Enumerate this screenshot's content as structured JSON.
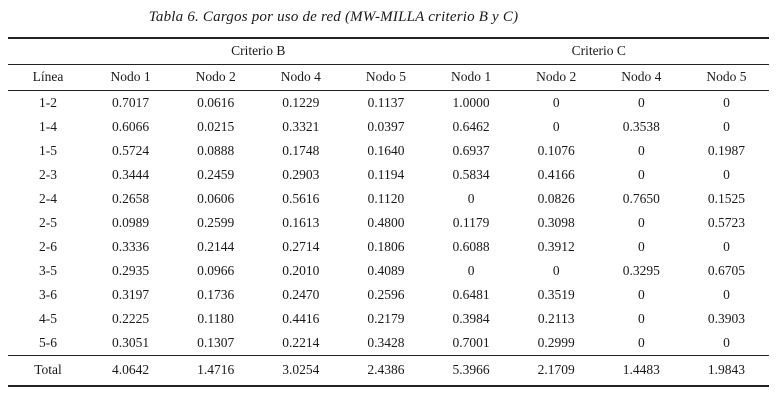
{
  "title": "Tabla 6. Cargos por uso de red (MW-MILLA criterio B y C)",
  "colors": {
    "background": "#ffffff",
    "text": "#1a1a1a",
    "rule": "#222222"
  },
  "table": {
    "group_headers": [
      {
        "label": "Criterio B",
        "span": 4
      },
      {
        "label": "Criterio C",
        "span": 4
      }
    ],
    "col_headers": [
      "Línea",
      "Nodo 1",
      "Nodo 2",
      "Nodo 4",
      "Nodo 5",
      "Nodo 1",
      "Nodo 2",
      "Nodo 4",
      "Nodo 5"
    ],
    "rows": [
      [
        "1-2",
        "0.7017",
        "0.0616",
        "0.1229",
        "0.1137",
        "1.0000",
        "0",
        "0",
        "0"
      ],
      [
        "1-4",
        "0.6066",
        "0.0215",
        "0.3321",
        "0.0397",
        "0.6462",
        "0",
        "0.3538",
        "0"
      ],
      [
        "1-5",
        "0.5724",
        "0.0888",
        "0.1748",
        "0.1640",
        "0.6937",
        "0.1076",
        "0",
        "0.1987"
      ],
      [
        "2-3",
        "0.3444",
        "0.2459",
        "0.2903",
        "0.1194",
        "0.5834",
        "0.4166",
        "0",
        "0"
      ],
      [
        "2-4",
        "0.2658",
        "0.0606",
        "0.5616",
        "0.1120",
        "0",
        "0.0826",
        "0.7650",
        "0.1525"
      ],
      [
        "2-5",
        "0.0989",
        "0.2599",
        "0.1613",
        "0.4800",
        "0.1179",
        "0.3098",
        "0",
        "0.5723"
      ],
      [
        "2-6",
        "0.3336",
        "0.2144",
        "0.2714",
        "0.1806",
        "0.6088",
        "0.3912",
        "0",
        "0"
      ],
      [
        "3-5",
        "0.2935",
        "0.0966",
        "0.2010",
        "0.4089",
        "0",
        "0",
        "0.3295",
        "0.6705"
      ],
      [
        "3-6",
        "0.3197",
        "0.1736",
        "0.2470",
        "0.2596",
        "0.6481",
        "0.3519",
        "0",
        "0"
      ],
      [
        "4-5",
        "0.2225",
        "0.1180",
        "0.4416",
        "0.2179",
        "0.3984",
        "0.2113",
        "0",
        "0.3903"
      ],
      [
        "5-6",
        "0.3051",
        "0.1307",
        "0.2214",
        "0.3428",
        "0.7001",
        "0.2999",
        "0",
        "0"
      ]
    ],
    "total_row": [
      "Total",
      "4.0642",
      "1.4716",
      "3.0254",
      "2.4386",
      "5.3966",
      "2.1709",
      "1.4483",
      "1.9843"
    ]
  }
}
